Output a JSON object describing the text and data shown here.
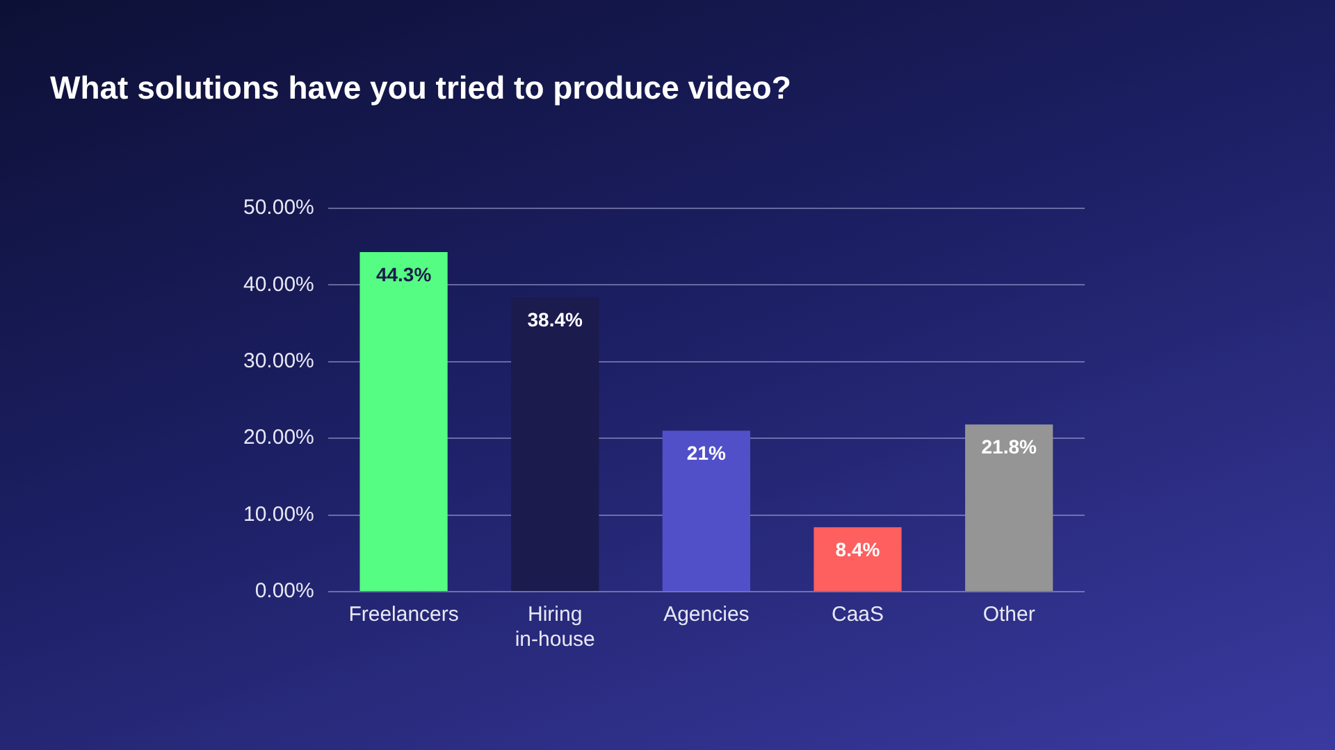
{
  "chart_data": {
    "type": "bar",
    "title": "What solutions have you tried to produce video?",
    "categories": [
      "Freelancers",
      "Hiring in-house",
      "Agencies",
      "CaaS",
      "Other"
    ],
    "values": [
      44.3,
      38.4,
      21,
      8.4,
      21.8
    ],
    "colors": [
      "#55fd82",
      "#1b1b4e",
      "#5150c9",
      "#fe5f5f",
      "#959595"
    ],
    "value_labels": [
      "44.3%",
      "38.4%",
      "21%",
      "8.4%",
      "21.8%"
    ],
    "ylim": [
      0,
      50
    ],
    "yticks": [
      {
        "value": 0,
        "label": "0.00%"
      },
      {
        "value": 10,
        "label": "10.00%"
      },
      {
        "value": 20,
        "label": "20.00%"
      },
      {
        "value": 30,
        "label": "30.00%"
      },
      {
        "value": 40,
        "label": "40.00%"
      },
      {
        "value": 50,
        "label": "50.00%"
      }
    ],
    "grid": "y",
    "legend": false
  }
}
